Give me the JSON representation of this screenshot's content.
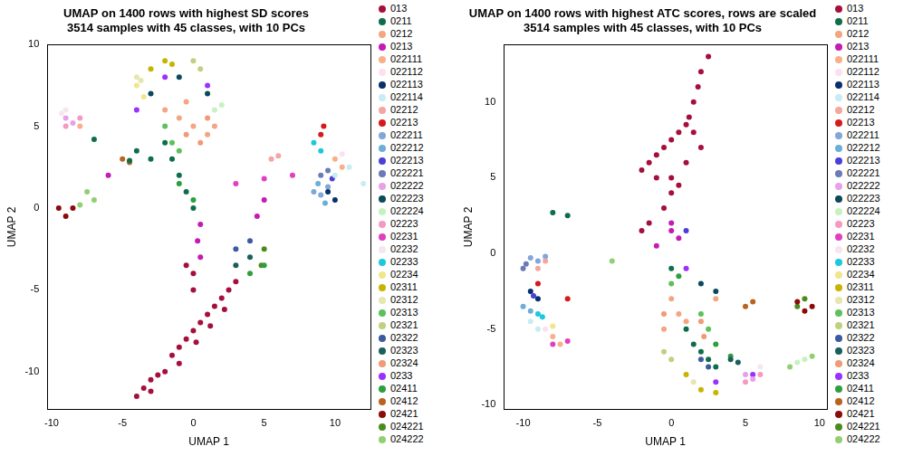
{
  "chart_data": [
    {
      "type": "scatter",
      "title": [
        "UMAP on 1400 rows with highest SD scores",
        "3514 samples with 45 classes, with 10 PCs"
      ],
      "x_label": "UMAP 1",
      "y_label": "UMAP 2",
      "xlim": [
        -10.3,
        12.5
      ],
      "xticks": [
        -10,
        -5,
        0,
        5,
        10
      ],
      "ylim": [
        -12.3,
        10
      ],
      "yticks": [
        -10,
        -5,
        0,
        5,
        10
      ],
      "grid": false,
      "marker": "circle",
      "legend": "right",
      "series": [
        {
          "name": "013",
          "color": "#a50f3c",
          "x": [
            -4,
            -3.5,
            -3,
            -2,
            -1.5,
            -1,
            -0.5,
            0,
            0.5,
            1,
            1.5,
            2,
            2.5,
            0,
            0,
            -0.5,
            -3,
            -2.5,
            -1,
            0.2,
            1.2,
            2.2,
            3
          ],
          "y": [
            -11.5,
            -11,
            -10.5,
            -10,
            -9,
            -8.5,
            -8,
            -7.5,
            -7,
            -6.5,
            -6,
            -5.5,
            -5,
            -5,
            -4,
            -3.5,
            -11.2,
            -10.2,
            -9.5,
            -8.2,
            -7.2,
            -6.2,
            -4.5
          ]
        },
        {
          "name": "0211",
          "color": "#0f6e4a",
          "x": [
            -2,
            -1.5,
            -1,
            -0.5,
            0,
            -3,
            -4,
            -4.5,
            -7
          ],
          "y": [
            4,
            3,
            2,
            1,
            0,
            3,
            3.5,
            2.9,
            4.2
          ]
        },
        {
          "name": "0212",
          "color": "#f4a582",
          "x": [
            -2,
            -1,
            0,
            1,
            1.5,
            -0.5
          ],
          "y": [
            6,
            5.5,
            5,
            4.5,
            5,
            6.5
          ]
        },
        {
          "name": "0213",
          "color": "#c51bb4",
          "x": [
            0.5,
            0.3,
            0.5,
            4.5,
            5,
            -6
          ],
          "y": [
            -1,
            -2,
            -3,
            -0.5,
            0.5,
            2
          ]
        },
        {
          "name": "022111",
          "color": "#f7b08a",
          "x": [
            10,
            10.5,
            -8
          ],
          "y": [
            3,
            2.5,
            5
          ]
        },
        {
          "name": "022112",
          "color": "#fde0ef",
          "x": [
            10.5
          ],
          "y": [
            3.3
          ]
        },
        {
          "name": "022113",
          "color": "#08306b",
          "x": [
            9.5,
            10
          ],
          "y": [
            1,
            0.5
          ]
        },
        {
          "name": "022114",
          "color": "#c6ecf5",
          "x": [
            10,
            11,
            12
          ],
          "y": [
            2,
            2.5,
            1.5
          ]
        },
        {
          "name": "02212",
          "color": "#f4a6a0",
          "x": [
            5.5,
            6
          ],
          "y": [
            3,
            3.2
          ]
        },
        {
          "name": "02213",
          "color": "#d7191c",
          "x": [
            9,
            9.2
          ],
          "y": [
            4.5,
            5
          ]
        },
        {
          "name": "022211",
          "color": "#7fa7d8",
          "x": [
            8.5,
            9,
            9.5
          ],
          "y": [
            1,
            0.8,
            1.3
          ]
        },
        {
          "name": "022212",
          "color": "#6baed6",
          "x": [
            8.8,
            9.3
          ],
          "y": [
            1.5,
            0.3
          ]
        },
        {
          "name": "022213",
          "color": "#4b3fd6",
          "x": [
            9.8
          ],
          "y": [
            1.8
          ]
        },
        {
          "name": "022221",
          "color": "#6a7bb5",
          "x": [
            9,
            9.5
          ],
          "y": [
            2,
            2.3
          ]
        },
        {
          "name": "022222",
          "color": "#e8a0e8",
          "x": [
            -9,
            -8.5
          ],
          "y": [
            5.5,
            5.2
          ]
        },
        {
          "name": "022223",
          "color": "#0b4a5a",
          "x": [
            -3,
            -1,
            1
          ],
          "y": [
            7,
            8,
            7
          ]
        },
        {
          "name": "022224",
          "color": "#c7f2c0",
          "x": [
            1.5,
            2
          ],
          "y": [
            6,
            6.3
          ]
        },
        {
          "name": "02223",
          "color": "#f49ac1",
          "x": [
            -9,
            -8
          ],
          "y": [
            5,
            5.5
          ]
        },
        {
          "name": "02231",
          "color": "#e040c0",
          "x": [
            3,
            5,
            7
          ],
          "y": [
            1.5,
            1.8,
            2
          ]
        },
        {
          "name": "02232",
          "color": "#f5e6f0",
          "x": [
            -9,
            -9.3
          ],
          "y": [
            6,
            5.8
          ]
        },
        {
          "name": "02233",
          "color": "#1ec8dc",
          "x": [
            8.5,
            9
          ],
          "y": [
            4,
            3.5
          ]
        },
        {
          "name": "02234",
          "color": "#f0e68c",
          "x": [
            -4,
            -3.5
          ],
          "y": [
            7.5,
            6.8
          ]
        },
        {
          "name": "02311",
          "color": "#c8b400",
          "x": [
            -2,
            -1.5,
            -3
          ],
          "y": [
            9,
            8.8,
            8.5
          ]
        },
        {
          "name": "02312",
          "color": "#e6e6b0",
          "x": [
            -4,
            -3.7
          ],
          "y": [
            8,
            7.8
          ]
        },
        {
          "name": "02313",
          "color": "#5cc15c",
          "x": [
            -2,
            -1.5,
            -1
          ],
          "y": [
            5,
            4,
            3.5
          ]
        },
        {
          "name": "02321",
          "color": "#c0d080",
          "x": [
            0,
            0.5
          ],
          "y": [
            9,
            8.5
          ]
        },
        {
          "name": "02322",
          "color": "#3c5aa0",
          "x": [
            4,
            3
          ],
          "y": [
            -2,
            -2.5
          ]
        },
        {
          "name": "02323",
          "color": "#1a5e5e",
          "x": [
            3,
            4
          ],
          "y": [
            -3.5,
            -3
          ]
        },
        {
          "name": "02324",
          "color": "#f09a78",
          "x": [
            -0.5,
            0.5,
            1
          ],
          "y": [
            4.5,
            4,
            5.5
          ]
        },
        {
          "name": "0233",
          "color": "#9b30ff",
          "x": [
            -2,
            -4,
            1
          ],
          "y": [
            8,
            6,
            7.5
          ]
        },
        {
          "name": "02411",
          "color": "#2e9e3e",
          "x": [
            -1,
            0,
            4,
            5
          ],
          "y": [
            1.5,
            0.5,
            -4,
            -3.5
          ]
        },
        {
          "name": "02412",
          "color": "#b8641e",
          "x": [
            -5,
            -4.5
          ],
          "y": [
            3,
            2.8
          ]
        },
        {
          "name": "02421",
          "color": "#8b0a0a",
          "x": [
            -9.5,
            -9,
            -8.5
          ],
          "y": [
            0,
            -0.5,
            0
          ]
        },
        {
          "name": "024221",
          "color": "#4a8c1c",
          "x": [
            5,
            4.8
          ],
          "y": [
            -2.5,
            -3.5
          ]
        },
        {
          "name": "024222",
          "color": "#90d070",
          "x": [
            -7.5,
            -7,
            -8
          ],
          "y": [
            1,
            0.5,
            0.2
          ]
        }
      ]
    },
    {
      "type": "scatter",
      "title": [
        "UMAP on 1400 rows with highest ATC scores, rows are scaled",
        "3514 samples with 45 classes, with 10 PCs"
      ],
      "x_label": "UMAP 1",
      "y_label": "UMAP 2",
      "xlim": [
        -11.3,
        10.5
      ],
      "xticks": [
        -10,
        -5,
        0,
        5,
        10
      ],
      "ylim": [
        -10.3,
        13.8
      ],
      "yticks": [
        -10,
        -5,
        0,
        5,
        10
      ],
      "grid": false,
      "marker": "circle",
      "legend": "right",
      "series": [
        {
          "name": "013",
          "color": "#a50f3c",
          "x": [
            2.5,
            2,
            1.8,
            1.5,
            1.2,
            1,
            0.5,
            0,
            -0.5,
            -1,
            -1.5,
            -2,
            -1,
            0,
            0.5,
            1,
            2,
            1.5,
            -0.5,
            -2,
            -1.5,
            0
          ],
          "y": [
            13,
            12,
            11,
            10,
            9,
            8.5,
            8,
            7.5,
            7,
            6.5,
            6,
            5.5,
            5,
            5,
            4.5,
            6,
            7,
            8,
            3,
            1.5,
            2,
            4
          ]
        },
        {
          "name": "0211",
          "color": "#0f6e4a",
          "x": [
            1,
            1.5,
            2,
            2.5,
            3,
            0,
            -7,
            -8
          ],
          "y": [
            -5,
            -6,
            -6.5,
            -7,
            -7.5,
            -1,
            2.5,
            2.7
          ]
        },
        {
          "name": "0212",
          "color": "#f4a582",
          "x": [
            0,
            0.5,
            1,
            -0.5,
            3
          ],
          "y": [
            -3,
            -4,
            -4.5,
            -5,
            -3
          ]
        },
        {
          "name": "0213",
          "color": "#c51bb4",
          "x": [
            0,
            0.5,
            0,
            -1
          ],
          "y": [
            2,
            1,
            1.5,
            0.5
          ]
        },
        {
          "name": "022111",
          "color": "#f7b08a",
          "x": [
            -8,
            -7.5
          ],
          "y": [
            -5.5,
            -6
          ]
        },
        {
          "name": "022112",
          "color": "#fde0ef",
          "x": [
            -8.5
          ],
          "y": [
            -5
          ]
        },
        {
          "name": "022113",
          "color": "#08306b",
          "x": [
            -9.5,
            -9
          ],
          "y": [
            -2.5,
            -3
          ]
        },
        {
          "name": "022114",
          "color": "#c6ecf5",
          "x": [
            -9,
            -9.5
          ],
          "y": [
            -5,
            -4.5
          ]
        },
        {
          "name": "02212",
          "color": "#f4a6a0",
          "x": [
            -9,
            -8.5
          ],
          "y": [
            -1,
            -0.5
          ]
        },
        {
          "name": "02213",
          "color": "#d7191c",
          "x": [
            -9,
            -7
          ],
          "y": [
            -2,
            -3
          ]
        },
        {
          "name": "022211",
          "color": "#7fa7d8",
          "x": [
            -9.5,
            -9,
            -8.5
          ],
          "y": [
            -0.3,
            -0.5,
            -0.2
          ]
        },
        {
          "name": "022212",
          "color": "#6baed6",
          "x": [
            -10,
            -9.5
          ],
          "y": [
            -3.5,
            -3.8
          ]
        },
        {
          "name": "022213",
          "color": "#4b3fd6",
          "x": [
            1,
            -9.3
          ],
          "y": [
            1.5,
            -2.8
          ]
        },
        {
          "name": "022221",
          "color": "#6a7bb5",
          "x": [
            -10,
            -9.8
          ],
          "y": [
            -1,
            -0.7
          ]
        },
        {
          "name": "022222",
          "color": "#e8a0e8",
          "x": [
            5,
            5.5
          ],
          "y": [
            -8,
            -8.3
          ]
        },
        {
          "name": "022223",
          "color": "#0b4a5a",
          "x": [
            2,
            3
          ],
          "y": [
            -2,
            -2.5
          ]
        },
        {
          "name": "022224",
          "color": "#c7f2c0",
          "x": [
            8.5,
            9
          ],
          "y": [
            -7.2,
            -7
          ]
        },
        {
          "name": "02223",
          "color": "#f49ac1",
          "x": [
            5,
            6
          ],
          "y": [
            -8.5,
            -8
          ]
        },
        {
          "name": "02231",
          "color": "#e040c0",
          "x": [
            -8,
            -7
          ],
          "y": [
            -6,
            -5.8
          ]
        },
        {
          "name": "02232",
          "color": "#f5e6f0",
          "x": [
            6
          ],
          "y": [
            -7.5
          ]
        },
        {
          "name": "02233",
          "color": "#1ec8dc",
          "x": [
            -9,
            -8.7
          ],
          "y": [
            -4,
            -4.2
          ]
        },
        {
          "name": "02234",
          "color": "#f0e68c",
          "x": [
            -8
          ],
          "y": [
            -4.8
          ]
        },
        {
          "name": "02311",
          "color": "#c8b400",
          "x": [
            1,
            2,
            3
          ],
          "y": [
            -8,
            -9,
            -9.2
          ]
        },
        {
          "name": "02312",
          "color": "#e6e6b0",
          "x": [
            1.5
          ],
          "y": [
            -8.5
          ]
        },
        {
          "name": "02313",
          "color": "#5cc15c",
          "x": [
            2,
            2.5,
            0
          ],
          "y": [
            -4,
            -5,
            -2
          ]
        },
        {
          "name": "02321",
          "color": "#c0d080",
          "x": [
            -0.5,
            0
          ],
          "y": [
            -6.5,
            -7
          ]
        },
        {
          "name": "02322",
          "color": "#3c5aa0",
          "x": [
            2,
            2.5
          ],
          "y": [
            -7,
            -7.5
          ]
        },
        {
          "name": "02323",
          "color": "#1a5e5e",
          "x": [
            4,
            4.5
          ],
          "y": [
            -7,
            -7.2
          ]
        },
        {
          "name": "02324",
          "color": "#f09a78",
          "x": [
            2,
            2.2,
            -0.5
          ],
          "y": [
            -4.5,
            -5.5,
            -4
          ]
        },
        {
          "name": "0233",
          "color": "#9b30ff",
          "x": [
            3,
            5.5,
            1
          ],
          "y": [
            -8.5,
            -8,
            -1
          ]
        },
        {
          "name": "02411",
          "color": "#2e9e3e",
          "x": [
            3,
            4,
            0.5
          ],
          "y": [
            -6,
            -6.8,
            -1.5
          ]
        },
        {
          "name": "02412",
          "color": "#b8641e",
          "x": [
            5,
            5.5
          ],
          "y": [
            -3.5,
            -3.2
          ]
        },
        {
          "name": "02421",
          "color": "#8b0a0a",
          "x": [
            9.5,
            9,
            8.5
          ],
          "y": [
            -3.5,
            -3.8,
            -3.2
          ]
        },
        {
          "name": "024221",
          "color": "#4a8c1c",
          "x": [
            9,
            8.5
          ],
          "y": [
            -3,
            -3.5
          ]
        },
        {
          "name": "024222",
          "color": "#90d070",
          "x": [
            -4,
            9.5,
            8
          ],
          "y": [
            -0.5,
            -6.8,
            -7.5
          ]
        }
      ]
    }
  ]
}
